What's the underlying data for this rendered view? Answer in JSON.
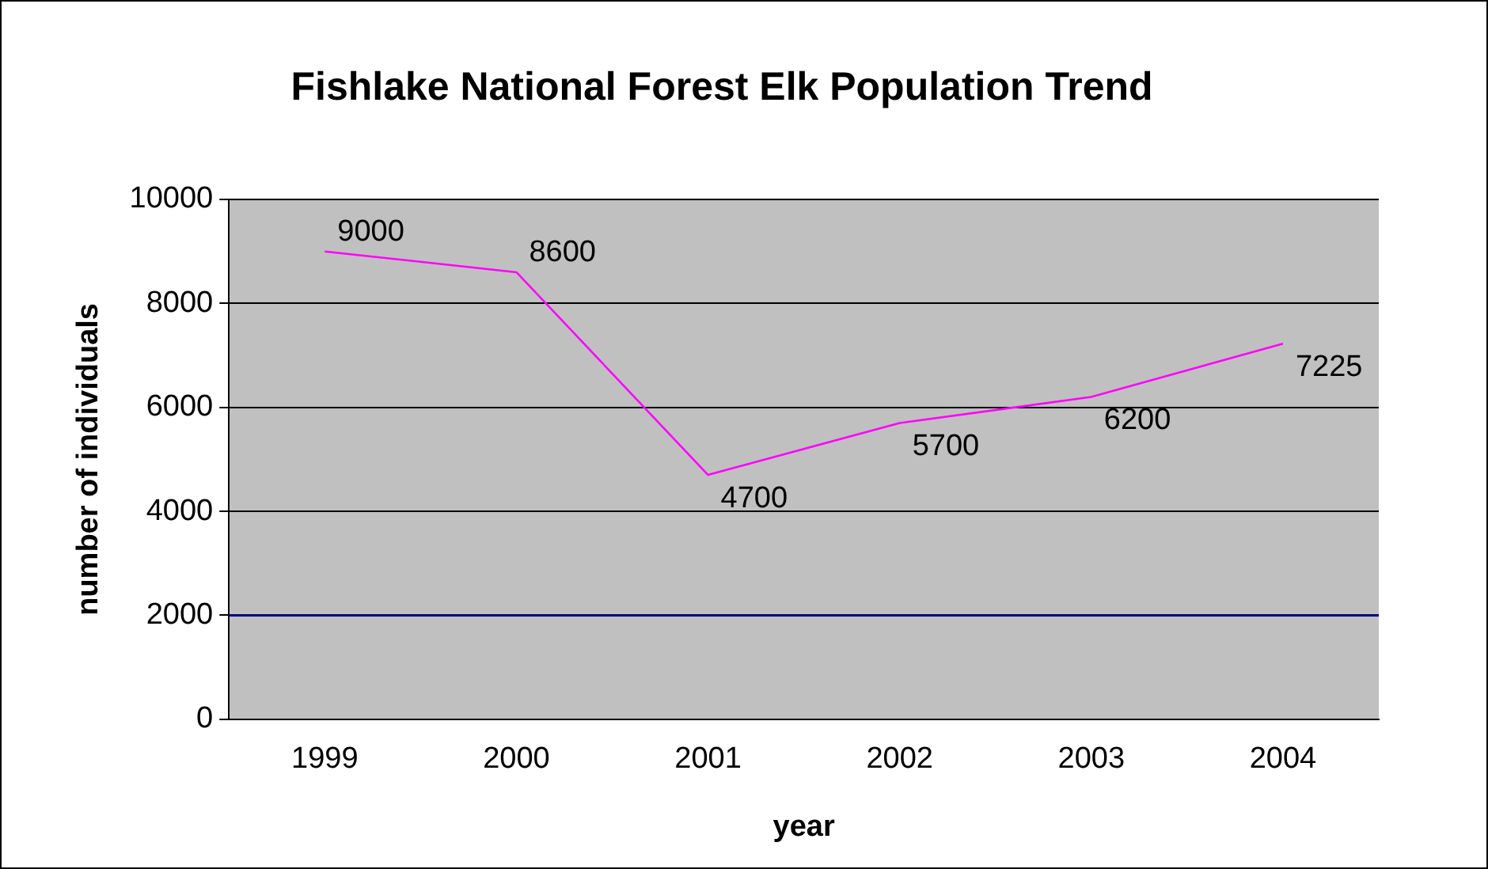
{
  "chart_data": {
    "type": "line",
    "title": "Fishlake National Forest Elk Population Trend",
    "xlabel": "year",
    "ylabel": "number of individuals",
    "categories": [
      "1999",
      "2000",
      "2001",
      "2002",
      "2003",
      "2004"
    ],
    "series": [
      {
        "color": "#ff00ff",
        "values": [
          9000,
          8600,
          4700,
          5700,
          6200,
          7225
        ]
      }
    ],
    "ylim": [
      0,
      10000
    ],
    "yticks": [
      0,
      2000,
      4000,
      6000,
      8000,
      10000
    ],
    "grid": "y",
    "marker": "none",
    "line_style": "solid",
    "data_labels": true,
    "legend": false,
    "ref_lines": [
      {
        "axis": "y",
        "value": 2000,
        "color": "#000080"
      }
    ]
  }
}
